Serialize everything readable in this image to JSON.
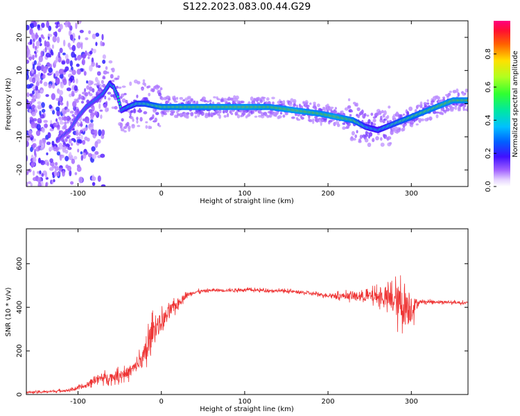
{
  "title": "S122.2023.083.00.44.G29",
  "chart_data": [
    {
      "type": "heatmap",
      "xlabel": "Height of straight line (km)",
      "ylabel": "Frequency (Hz)",
      "xlim": [
        -162,
        368
      ],
      "ylim": [
        -25,
        25
      ],
      "xticks": [
        -100,
        0,
        100,
        200,
        300
      ],
      "yticks": [
        -20,
        -10,
        0,
        10,
        20
      ],
      "colorbar": {
        "label": "Normalized spectral amplitude",
        "range": [
          0,
          1
        ],
        "ticks": [
          "0.0",
          "0.2",
          "0.4",
          "0.6",
          "0.8"
        ],
        "colors": [
          "#ffffff",
          "#c89cff",
          "#8000ff",
          "#2020ff",
          "#00c0ff",
          "#00e0a0",
          "#30ff30",
          "#c0ff20",
          "#ffe000",
          "#ff8000",
          "#ff2020",
          "#ff0070"
        ]
      },
      "ridge": {
        "x": [
          -125,
          -110,
          -100,
          -90,
          -80,
          -70,
          -62,
          -57,
          -52,
          -48,
          -40,
          -30,
          -20,
          -10,
          0,
          50,
          100,
          130,
          160,
          190,
          210,
          230,
          245,
          260,
          280,
          300,
          320,
          340,
          350,
          368
        ],
        "freq": [
          -11,
          -8,
          -4,
          -1,
          1,
          3,
          6,
          5,
          2,
          -2,
          -1,
          0,
          0,
          -0.5,
          -1,
          -1,
          -1,
          -1,
          -2,
          -3,
          -4,
          -5,
          -7,
          -8,
          -6,
          -4,
          -2,
          0,
          1,
          1
        ],
        "amplitude": [
          0.3,
          0.3,
          0.35,
          0.4,
          0.4,
          0.45,
          0.5,
          0.5,
          0.5,
          0.45,
          0.55,
          0.6,
          0.65,
          0.7,
          0.8,
          0.85,
          0.9,
          0.85,
          0.9,
          0.85,
          0.9,
          0.8,
          0.55,
          0.5,
          0.65,
          0.75,
          0.8,
          0.85,
          0.85,
          0.85
        ]
      }
    },
    {
      "type": "line",
      "xlabel": "Height of straight line (km)",
      "ylabel": "SNR (10 * v/v)",
      "xlim": [
        -162,
        368
      ],
      "ylim": [
        0,
        760
      ],
      "xticks": [
        -100,
        0,
        100,
        200,
        300
      ],
      "yticks": [
        0,
        200,
        400,
        600
      ],
      "color": "#ee3333",
      "envelope": {
        "x": [
          -162,
          -140,
          -110,
          -90,
          -80,
          -60,
          -40,
          -30,
          -20,
          -15,
          -10,
          0,
          10,
          20,
          30,
          40,
          60,
          80,
          100,
          150,
          200,
          240,
          260,
          270,
          280,
          285,
          290,
          295,
          300,
          305,
          310,
          330,
          368
        ],
        "mean": [
          10,
          12,
          20,
          40,
          70,
          80,
          100,
          130,
          180,
          230,
          300,
          330,
          380,
          420,
          455,
          470,
          478,
          478,
          480,
          475,
          455,
          450,
          450,
          440,
          430,
          420,
          410,
          400,
          400,
          410,
          425,
          425,
          420
        ],
        "spread": [
          8,
          8,
          10,
          20,
          35,
          40,
          50,
          50,
          100,
          160,
          90,
          80,
          60,
          40,
          20,
          15,
          12,
          12,
          12,
          12,
          15,
          40,
          60,
          80,
          120,
          160,
          180,
          170,
          140,
          60,
          15,
          12,
          12
        ]
      }
    }
  ]
}
